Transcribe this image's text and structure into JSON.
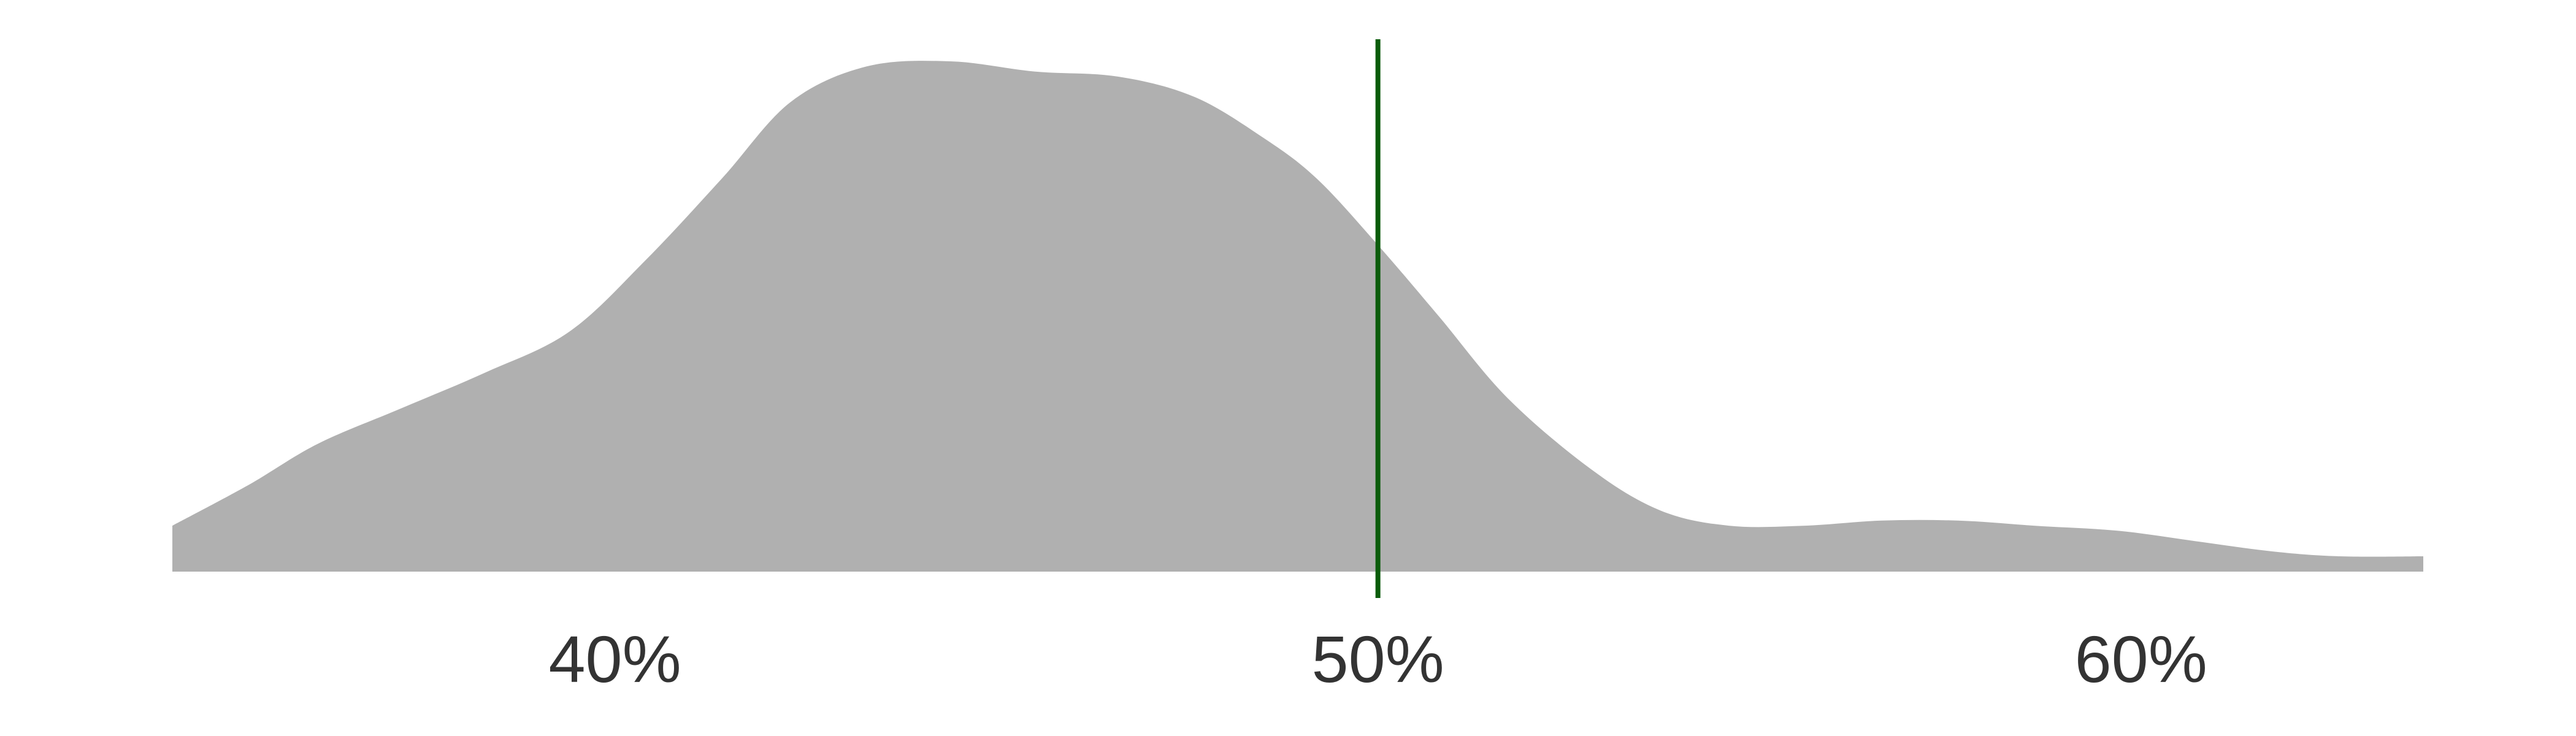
{
  "chart_data": {
    "type": "area",
    "title": "",
    "xlabel": "",
    "ylabel": "",
    "xlim": [
      34.2,
      63.7
    ],
    "ylim": [
      0,
      1
    ],
    "grid": false,
    "legend": "none",
    "x_ticks": [
      {
        "value": 40,
        "label": "40%"
      },
      {
        "value": 50,
        "label": "50%"
      },
      {
        "value": 60,
        "label": "60%"
      }
    ],
    "series": [
      {
        "fill_color": "#b0b0b0",
        "x": [
          34.2,
          35.2,
          36.1,
          37.2,
          38.3,
          39.4,
          40.4,
          41.4,
          42.3,
          43.3,
          44.4,
          45.5,
          46.6,
          47.6,
          48.5,
          49.2,
          50.0,
          50.8,
          51.7,
          52.8,
          53.7,
          54.6,
          55.6,
          56.6,
          57.6,
          58.6,
          59.7,
          60.7,
          61.7,
          62.6,
          63.7
        ],
        "y": [
          0.09,
          0.17,
          0.25,
          0.32,
          0.39,
          0.47,
          0.61,
          0.77,
          0.92,
          0.99,
          1.0,
          0.98,
          0.97,
          0.93,
          0.85,
          0.77,
          0.64,
          0.5,
          0.34,
          0.2,
          0.12,
          0.09,
          0.09,
          0.1,
          0.1,
          0.09,
          0.08,
          0.06,
          0.04,
          0.03,
          0.03
        ]
      }
    ],
    "reference_line": {
      "x": 50.0,
      "color": "#0b5c0b"
    }
  }
}
